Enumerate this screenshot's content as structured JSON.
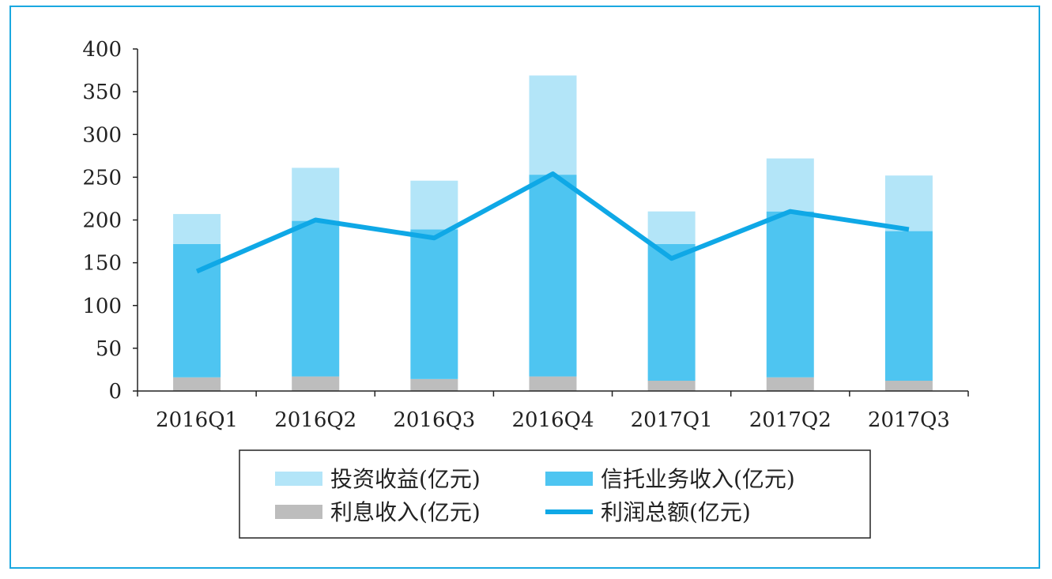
{
  "chart_data": {
    "type": "bar",
    "stacked": true,
    "categories": [
      "2016Q1",
      "2016Q2",
      "2016Q3",
      "2016Q4",
      "2017Q1",
      "2017Q2",
      "2017Q3"
    ],
    "series": [
      {
        "name": "利息收入(亿元)",
        "kind": "bar",
        "color": "#bdbdbd",
        "values": [
          16,
          17,
          14,
          17,
          12,
          16,
          12
        ]
      },
      {
        "name": "信托业务收入(亿元)",
        "kind": "bar",
        "color": "#4ec5f1",
        "values": [
          156,
          182,
          175,
          236,
          160,
          194,
          175
        ]
      },
      {
        "name": "投资收益(亿元)",
        "kind": "bar",
        "color": "#b3e5f8",
        "values": [
          35,
          62,
          57,
          116,
          38,
          62,
          65
        ]
      },
      {
        "name": "利润总额(亿元)",
        "kind": "line",
        "color": "#0fa8e6",
        "values": [
          140,
          200,
          179,
          254,
          155,
          210,
          189
        ]
      }
    ],
    "yticks": [
      0,
      50,
      100,
      150,
      200,
      250,
      300,
      350,
      400
    ],
    "ylim": [
      0,
      400
    ],
    "grid": false,
    "legend_position": "bottom",
    "legend_order": [
      "投资收益(亿元)",
      "信托业务收入(亿元)",
      "利息收入(亿元)",
      "利润总额(亿元)"
    ]
  }
}
